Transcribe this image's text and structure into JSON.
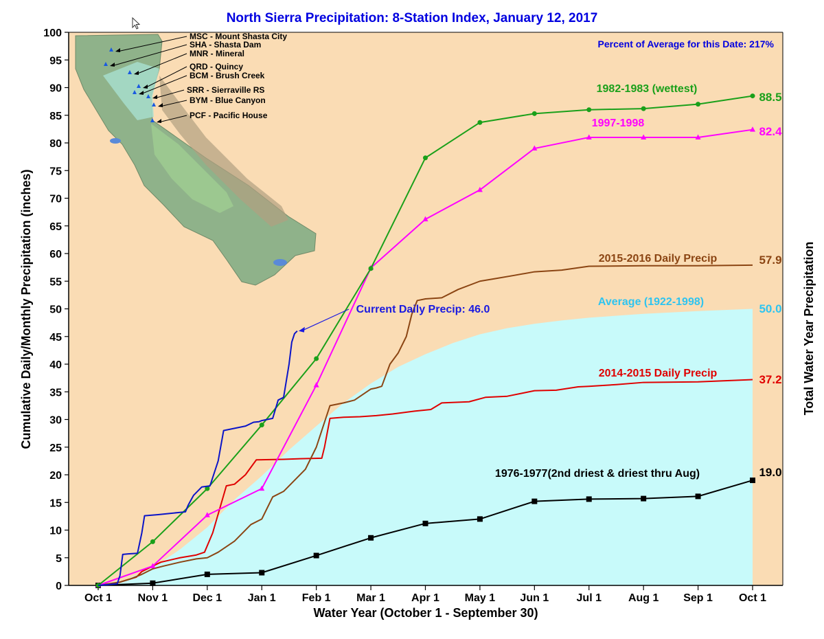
{
  "chart_data": {
    "type": "line",
    "title": "North Sierra Precipitation: 8-Station Index, January 12, 2017",
    "subtitle": "Percent of Average for this Date: 217%",
    "xlabel": "Water Year (October 1 - September 30)",
    "ylabel": "Cumulative Daily/Monthly Precipitation (inches)",
    "ylabel_right": "Total Water Year Precipitation",
    "xlim": [
      0,
      12
    ],
    "ylim": [
      0,
      100
    ],
    "x_ticks": [
      "Oct 1",
      "Nov 1",
      "Dec 1",
      "Jan 1",
      "Feb 1",
      "Mar 1",
      "Apr 1",
      "May 1",
      "Jun 1",
      "Jul 1",
      "Aug 1",
      "Sep 1",
      "Oct 1"
    ],
    "y_ticks": [
      0,
      5,
      10,
      15,
      20,
      25,
      30,
      35,
      40,
      45,
      50,
      55,
      60,
      65,
      70,
      75,
      80,
      85,
      90,
      95,
      100
    ],
    "series": [
      {
        "name": "Average (1922-1998)",
        "label": "Average (1922-1998)",
        "end_label": "50.0",
        "style": "area",
        "color": "#c8fafa",
        "label_color": "#2ec4f0",
        "x": [
          0,
          0.5,
          1,
          1.5,
          2,
          2.5,
          3,
          3.5,
          4,
          4.5,
          5,
          5.5,
          6,
          6.5,
          7,
          7.5,
          8,
          8.5,
          9,
          10,
          11,
          12
        ],
        "values": [
          0,
          1,
          3.2,
          6.5,
          10.5,
          15.5,
          19.8,
          24.5,
          28.8,
          33,
          36.5,
          39.5,
          41.8,
          43.8,
          45.4,
          46.5,
          47.3,
          47.9,
          48.4,
          49.1,
          49.6,
          50.0
        ]
      },
      {
        "name": "1976-1977",
        "label": "1976-1977(2nd driest & driest thru Aug)",
        "end_label": "19.0",
        "style": "line-square",
        "color": "#000000",
        "label_color": "#000000",
        "x": [
          0,
          1,
          2,
          3,
          4,
          5,
          6,
          7,
          8,
          9,
          10,
          11,
          12
        ],
        "values": [
          0,
          0.4,
          2.0,
          2.3,
          5.4,
          8.6,
          11.2,
          12.0,
          15.2,
          15.6,
          15.7,
          16.1,
          19.0
        ]
      },
      {
        "name": "2014-2015 Daily Precip",
        "label": "2014-2015 Daily Precip",
        "end_label": "37.2",
        "style": "step",
        "color": "#e00000",
        "label_color": "#e00000",
        "x": [
          0,
          0.3,
          0.5,
          0.7,
          0.8,
          1.0,
          1.15,
          1.5,
          1.8,
          1.95,
          2.1,
          2.35,
          2.5,
          2.7,
          2.9,
          3.4,
          3.7,
          4.1,
          4.15,
          4.25,
          4.5,
          4.8,
          5.1,
          5.4,
          5.8,
          6.1,
          6.3,
          6.8,
          7.1,
          7.5,
          7.8,
          8.0,
          8.4,
          8.8,
          9.0,
          9.5,
          10.0,
          11.0,
          12.0
        ],
        "values": [
          0,
          0.3,
          0.9,
          1.5,
          2.5,
          3.5,
          4.2,
          5.0,
          5.5,
          6.0,
          9.5,
          18.0,
          18.3,
          20.0,
          22.7,
          22.8,
          22.9,
          23.0,
          25.0,
          30.2,
          30.4,
          30.5,
          30.7,
          31.0,
          31.5,
          31.8,
          33.0,
          33.2,
          34.0,
          34.2,
          34.8,
          35.2,
          35.3,
          35.9,
          36.0,
          36.3,
          36.7,
          36.8,
          37.2
        ]
      },
      {
        "name": "2015-2016 Daily Precip",
        "label": "2015-2016 Daily Precip",
        "end_label": "57.9",
        "style": "step",
        "color": "#8b4513",
        "label_color": "#8b4513",
        "x": [
          0,
          0.4,
          0.6,
          0.8,
          1.0,
          1.2,
          1.5,
          1.8,
          2.0,
          2.2,
          2.5,
          2.8,
          3.0,
          3.2,
          3.4,
          3.6,
          3.8,
          4.0,
          4.1,
          4.25,
          4.5,
          4.7,
          5.0,
          5.1,
          5.2,
          5.35,
          5.5,
          5.65,
          5.75,
          5.85,
          6.0,
          6.3,
          6.6,
          7.0,
          7.3,
          7.6,
          8.0,
          8.5,
          9.0,
          10.0,
          11.0,
          12.0
        ],
        "values": [
          0,
          0.6,
          1.2,
          2.0,
          3.0,
          3.5,
          4.2,
          4.8,
          5.0,
          6.0,
          8.0,
          11.0,
          12.0,
          16.0,
          17.0,
          19.0,
          21.0,
          25.0,
          28.0,
          32.5,
          33.0,
          33.5,
          35.5,
          35.7,
          36.0,
          40.0,
          42.0,
          45.0,
          49.0,
          51.5,
          51.8,
          52.0,
          53.5,
          55.0,
          55.5,
          56.0,
          56.7,
          57.0,
          57.7,
          57.8,
          57.8,
          57.9
        ]
      },
      {
        "name": "1997-1998",
        "label": "1997-1998",
        "end_label": "82.4",
        "style": "line-triangle",
        "color": "#ff00ff",
        "label_color": "#ff00ff",
        "x": [
          0,
          1,
          2,
          3,
          4,
          5,
          6,
          7,
          8,
          9,
          10,
          11,
          12
        ],
        "values": [
          0,
          3.5,
          12.7,
          17.5,
          36.2,
          57.4,
          66.2,
          71.5,
          79.0,
          81.0,
          81.0,
          81.0,
          82.4
        ]
      },
      {
        "name": "1982-1983",
        "label": "1982-1983 (wettest)",
        "end_label": "88.5",
        "style": "line-circle",
        "color": "#1aa01a",
        "label_color": "#1aa01a",
        "x": [
          0,
          1,
          2,
          3,
          4,
          5,
          6,
          7,
          8,
          9,
          10,
          11,
          12
        ],
        "values": [
          0,
          7.9,
          17.5,
          29.0,
          41.0,
          57.3,
          77.3,
          83.7,
          85.3,
          86.0,
          86.2,
          87.0,
          88.5
        ]
      },
      {
        "name": "Current Daily Precip",
        "label": "Current Daily Precip: 46.0",
        "style": "step",
        "color": "#0a14c8",
        "label_color": "#1a1ae0",
        "x": [
          0,
          0.35,
          0.4,
          0.45,
          0.55,
          0.72,
          0.8,
          0.85,
          1.1,
          1.3,
          1.6,
          1.65,
          1.75,
          1.9,
          2.05,
          2.2,
          2.3,
          2.5,
          2.7,
          2.85,
          2.95,
          3.0,
          3.2,
          3.3,
          3.4,
          3.5,
          3.55,
          3.6,
          3.65
        ],
        "values": [
          0,
          0.3,
          1.8,
          5.6,
          5.7,
          5.8,
          9.5,
          12.6,
          12.8,
          13.0,
          13.3,
          14.5,
          16.3,
          17.8,
          18.0,
          22.5,
          28.0,
          28.4,
          28.8,
          29.5,
          29.6,
          29.8,
          30.2,
          33.5,
          34.0,
          40.0,
          44.0,
          45.5,
          46.0
        ]
      }
    ]
  },
  "stations": [
    "MSC - Mount Shasta City",
    "SHA - Shasta Dam",
    "MNR - Mineral",
    "QRD - Quincy",
    "BCM - Brush Creek",
    "SRR - Sierraville RS",
    "BYM - Blue Canyon",
    "PCF - Pacific House"
  ],
  "colors": {
    "background": "#fadcb4",
    "title": "#0000e0",
    "average_fill": "#c8fafa"
  }
}
